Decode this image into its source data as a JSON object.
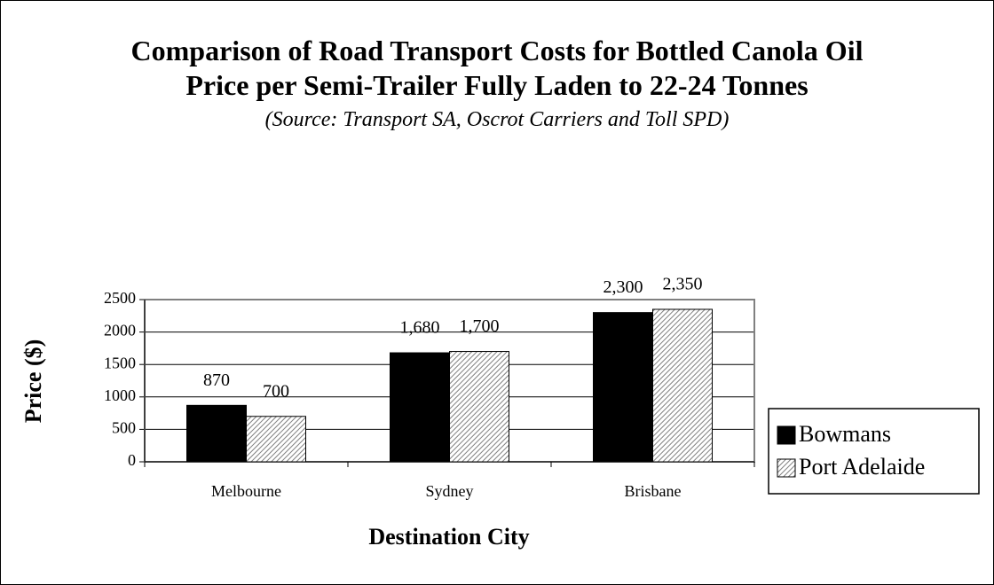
{
  "chart_data": {
    "type": "bar",
    "title": "Comparison of Road Transport Costs for Bottled Canola Oil",
    "subtitle": "Price per Semi-Trailer Fully Laden to 22-24 Tonnes",
    "source": "(Source: Transport SA, Oscrot Carriers and Toll SPD)",
    "x_label": "Destination City",
    "y_label": "Price ($)",
    "categories": [
      "Melbourne",
      "Sydney",
      "Brisbane"
    ],
    "series": [
      {
        "name": "Bowmans",
        "color": "#000000",
        "values": [
          870,
          1680,
          2300
        ],
        "value_labels": [
          "870",
          "1,680",
          "2,300"
        ]
      },
      {
        "name": "Port Adelaide",
        "color": "#7f7f7f",
        "pattern": "hatch",
        "values": [
          700,
          1700,
          2350
        ],
        "value_labels": [
          "700",
          "1,700",
          "2,350"
        ]
      }
    ],
    "ylim": [
      0,
      2500
    ],
    "yticks": [
      0,
      500,
      1000,
      1500,
      2000,
      2500
    ],
    "grid": true,
    "legend": "right"
  }
}
